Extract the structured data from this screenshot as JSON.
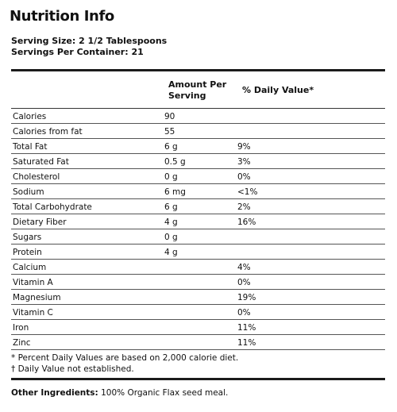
{
  "title": "Nutrition Info",
  "serving": {
    "size": "Serving Size: 2 1/2 Tablespoons",
    "per_container": "Servings Per Container: 21"
  },
  "columns": {
    "amount_line1": "Amount Per",
    "amount_line2": "Serving",
    "daily_value": "% Daily Value*"
  },
  "rows": [
    {
      "name": "Calories",
      "amount": "90",
      "dv": ""
    },
    {
      "name": "Calories from fat",
      "amount": "55",
      "dv": ""
    },
    {
      "name": "Total Fat",
      "amount": "6 g",
      "dv": "9%"
    },
    {
      "name": "Saturated Fat",
      "amount": "0.5 g",
      "dv": "3%"
    },
    {
      "name": "Cholesterol",
      "amount": "0 g",
      "dv": "0%"
    },
    {
      "name": "Sodium",
      "amount": "6 mg",
      "dv": "<1%"
    },
    {
      "name": "Total Carbohydrate",
      "amount": "6 g",
      "dv": "2%"
    },
    {
      "name": "Dietary Fiber",
      "amount": "4 g",
      "dv": "16%"
    },
    {
      "name": "Sugars",
      "amount": "0 g",
      "dv": ""
    },
    {
      "name": "Protein",
      "amount": "4 g",
      "dv": ""
    },
    {
      "name": "Calcium",
      "amount": "",
      "dv": "4%"
    },
    {
      "name": "Vitamin A",
      "amount": "",
      "dv": "0%"
    },
    {
      "name": "Magnesium",
      "amount": "",
      "dv": "19%"
    },
    {
      "name": "Vitamin C",
      "amount": "",
      "dv": "0%"
    },
    {
      "name": "Iron",
      "amount": "",
      "dv": "11%"
    },
    {
      "name": "Zinc",
      "amount": "",
      "dv": "11%"
    }
  ],
  "footnotes": {
    "percent": "* Percent Daily Values are based on 2,000 calorie diet.",
    "dagger": "† Daily Value not established."
  },
  "ingredients": {
    "label": "Other Ingredients:",
    "text": " 100% Organic Flax seed meal."
  }
}
